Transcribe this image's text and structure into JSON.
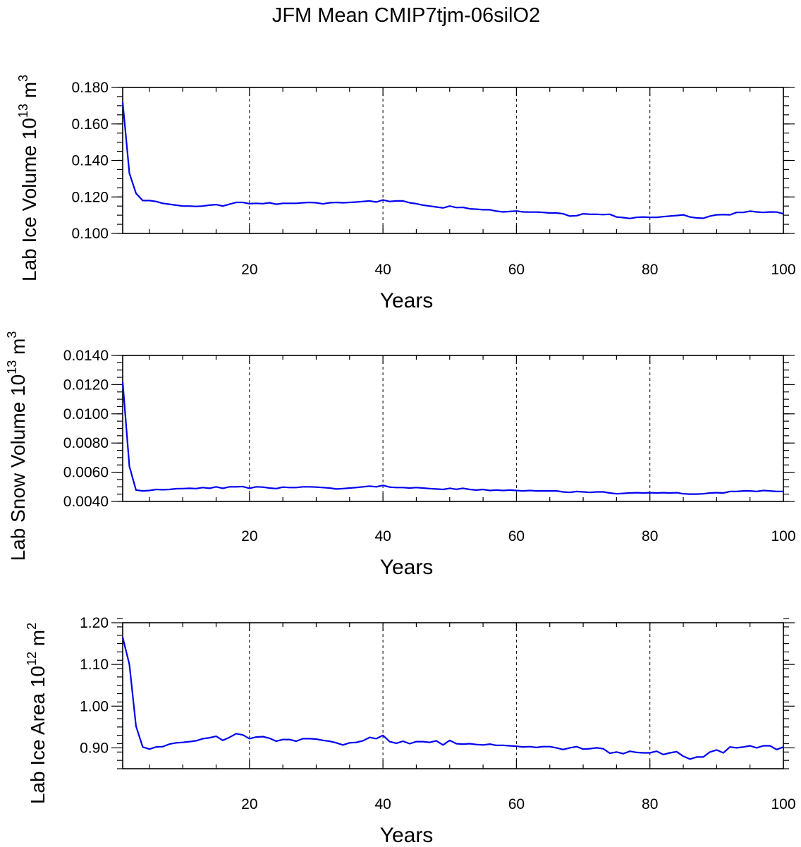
{
  "chart_data": {
    "title": "JFM Mean CMIP7tjm-06silO2",
    "type": "line",
    "line_color": "#0000ee",
    "panels": [
      {
        "type": "line",
        "ylabel": "Lab Ice Volume",
        "yunit_base": "10",
        "yunit_exp": "13",
        "yunit_var": "m",
        "yunit_pow": "3",
        "xlabel": "Years",
        "xlim": [
          1,
          100
        ],
        "ylim": [
          0.1,
          0.18
        ],
        "x_ticks": [
          "20",
          "40",
          "60",
          "80",
          "100"
        ],
        "y_ticks": [
          "0.100",
          "0.120",
          "0.140",
          "0.160",
          "0.180"
        ],
        "grid_x": [
          20,
          40,
          60,
          80
        ],
        "x": [
          1,
          2,
          3,
          4,
          5,
          6,
          7,
          8,
          9,
          10,
          11,
          12,
          13,
          14,
          15,
          16,
          17,
          18,
          19,
          20,
          21,
          22,
          23,
          24,
          25,
          26,
          27,
          28,
          29,
          30,
          31,
          32,
          33,
          34,
          35,
          36,
          37,
          38,
          39,
          40,
          41,
          42,
          43,
          44,
          45,
          46,
          47,
          48,
          49,
          50,
          51,
          52,
          53,
          54,
          55,
          56,
          57,
          58,
          59,
          60,
          61,
          62,
          63,
          64,
          65,
          66,
          67,
          68,
          69,
          70,
          71,
          72,
          73,
          74,
          75,
          76,
          77,
          78,
          79,
          80,
          81,
          82,
          83,
          84,
          85,
          86,
          87,
          88,
          89,
          90,
          91,
          92,
          93,
          94,
          95,
          96,
          97,
          98,
          99,
          100
        ],
        "values": [
          0.172,
          0.133,
          0.122,
          0.118,
          0.118,
          0.1175,
          0.1165,
          0.116,
          0.1155,
          0.115,
          0.115,
          0.1148,
          0.115,
          0.1155,
          0.1158,
          0.115,
          0.116,
          0.117,
          0.117,
          0.1163,
          0.1165,
          0.1163,
          0.1168,
          0.116,
          0.1165,
          0.1165,
          0.1165,
          0.1168,
          0.117,
          0.1168,
          0.1162,
          0.1168,
          0.117,
          0.1168,
          0.117,
          0.1172,
          0.1175,
          0.1178,
          0.1172,
          0.1183,
          0.1175,
          0.1178,
          0.1178,
          0.1168,
          0.1163,
          0.1155,
          0.115,
          0.1145,
          0.114,
          0.115,
          0.1142,
          0.1143,
          0.1135,
          0.1133,
          0.113,
          0.113,
          0.1122,
          0.1118,
          0.112,
          0.1123,
          0.1118,
          0.1117,
          0.1117,
          0.1115,
          0.1112,
          0.1112,
          0.1108,
          0.1095,
          0.1097,
          0.1108,
          0.1105,
          0.1105,
          0.1103,
          0.1105,
          0.109,
          0.1087,
          0.1082,
          0.1088,
          0.109,
          0.1088,
          0.1088,
          0.1092,
          0.1095,
          0.1098,
          0.1102,
          0.109,
          0.1085,
          0.1083,
          0.1095,
          0.1102,
          0.1103,
          0.1102,
          0.1115,
          0.1115,
          0.1122,
          0.1118,
          0.1115,
          0.1118,
          0.1117,
          0.1108
        ]
      },
      {
        "type": "line",
        "ylabel": "Lab Snow Volume",
        "yunit_base": "10",
        "yunit_exp": "13",
        "yunit_var": "m",
        "yunit_pow": "3",
        "xlabel": "Years",
        "xlim": [
          1,
          100
        ],
        "ylim": [
          0.004,
          0.014
        ],
        "x_ticks": [
          "20",
          "40",
          "60",
          "80",
          "100"
        ],
        "y_ticks": [
          "0.0040",
          "0.0060",
          "0.0080",
          "0.0100",
          "0.0120",
          "0.0140"
        ],
        "grid_x": [
          20,
          40,
          60,
          80
        ],
        "x": [
          1,
          2,
          3,
          4,
          5,
          6,
          7,
          8,
          9,
          10,
          11,
          12,
          13,
          14,
          15,
          16,
          17,
          18,
          19,
          20,
          21,
          22,
          23,
          24,
          25,
          26,
          27,
          28,
          29,
          30,
          31,
          32,
          33,
          34,
          35,
          36,
          37,
          38,
          39,
          40,
          41,
          42,
          43,
          44,
          45,
          46,
          47,
          48,
          49,
          50,
          51,
          52,
          53,
          54,
          55,
          56,
          57,
          58,
          59,
          60,
          61,
          62,
          63,
          64,
          65,
          66,
          67,
          68,
          69,
          70,
          71,
          72,
          73,
          74,
          75,
          76,
          77,
          78,
          79,
          80,
          81,
          82,
          83,
          84,
          85,
          86,
          87,
          88,
          89,
          90,
          91,
          92,
          93,
          94,
          95,
          96,
          97,
          98,
          99,
          100
        ],
        "values": [
          0.0122,
          0.0064,
          0.00478,
          0.00472,
          0.00475,
          0.00482,
          0.0048,
          0.00482,
          0.00487,
          0.00488,
          0.0049,
          0.00488,
          0.00495,
          0.0049,
          0.005,
          0.0049,
          0.005,
          0.005,
          0.00502,
          0.0049,
          0.005,
          0.00498,
          0.00492,
          0.00488,
          0.00498,
          0.00495,
          0.00495,
          0.005,
          0.005,
          0.00498,
          0.00495,
          0.00492,
          0.00485,
          0.00488,
          0.00492,
          0.00495,
          0.005,
          0.00505,
          0.005,
          0.0051,
          0.00498,
          0.00495,
          0.00495,
          0.00492,
          0.00495,
          0.00492,
          0.00488,
          0.00485,
          0.00482,
          0.0049,
          0.00483,
          0.0049,
          0.00482,
          0.00478,
          0.00482,
          0.00475,
          0.00478,
          0.00475,
          0.00478,
          0.00475,
          0.00472,
          0.00475,
          0.00472,
          0.00472,
          0.00472,
          0.00472,
          0.00465,
          0.00462,
          0.00468,
          0.00465,
          0.00462,
          0.00465,
          0.00465,
          0.00458,
          0.00452,
          0.00455,
          0.00458,
          0.0046,
          0.00458,
          0.0046,
          0.00458,
          0.0046,
          0.00458,
          0.0046,
          0.00452,
          0.0045,
          0.0045,
          0.00452,
          0.00458,
          0.0046,
          0.00458,
          0.00468,
          0.00468,
          0.00472,
          0.00472,
          0.00468,
          0.00475,
          0.00472,
          0.00468,
          0.00468
        ]
      },
      {
        "type": "line",
        "ylabel": "Lab Ice Area",
        "yunit_base": "10",
        "yunit_exp": "12",
        "yunit_var": "m",
        "yunit_pow": "2",
        "xlabel": "Years",
        "xlim": [
          1,
          100
        ],
        "ylim": [
          0.85,
          1.2
        ],
        "x_ticks": [
          "20",
          "40",
          "60",
          "80",
          "100"
        ],
        "y_ticks": [
          "0.90",
          "1.00",
          "1.10",
          "1.20"
        ],
        "grid_x": [
          20,
          40,
          60,
          80
        ],
        "x": [
          1,
          2,
          3,
          4,
          5,
          6,
          7,
          8,
          9,
          10,
          11,
          12,
          13,
          14,
          15,
          16,
          17,
          18,
          19,
          20,
          21,
          22,
          23,
          24,
          25,
          26,
          27,
          28,
          29,
          30,
          31,
          32,
          33,
          34,
          35,
          36,
          37,
          38,
          39,
          40,
          41,
          42,
          43,
          44,
          45,
          46,
          47,
          48,
          49,
          50,
          51,
          52,
          53,
          54,
          55,
          56,
          57,
          58,
          59,
          60,
          61,
          62,
          63,
          64,
          65,
          66,
          67,
          68,
          69,
          70,
          71,
          72,
          73,
          74,
          75,
          76,
          77,
          78,
          79,
          80,
          81,
          82,
          83,
          84,
          85,
          86,
          87,
          88,
          89,
          90,
          91,
          92,
          93,
          94,
          95,
          96,
          97,
          98,
          99,
          100
        ],
        "values": [
          1.165,
          1.1,
          0.952,
          0.902,
          0.897,
          0.902,
          0.903,
          0.909,
          0.912,
          0.913,
          0.915,
          0.917,
          0.922,
          0.924,
          0.928,
          0.918,
          0.925,
          0.934,
          0.931,
          0.922,
          0.926,
          0.927,
          0.923,
          0.916,
          0.92,
          0.92,
          0.916,
          0.922,
          0.922,
          0.921,
          0.918,
          0.916,
          0.912,
          0.907,
          0.912,
          0.913,
          0.917,
          0.925,
          0.922,
          0.93,
          0.915,
          0.911,
          0.916,
          0.91,
          0.915,
          0.915,
          0.913,
          0.917,
          0.907,
          0.918,
          0.91,
          0.909,
          0.91,
          0.908,
          0.907,
          0.909,
          0.906,
          0.906,
          0.905,
          0.904,
          0.902,
          0.903,
          0.901,
          0.903,
          0.903,
          0.9,
          0.896,
          0.9,
          0.903,
          0.897,
          0.898,
          0.9,
          0.898,
          0.887,
          0.89,
          0.886,
          0.892,
          0.889,
          0.888,
          0.888,
          0.892,
          0.884,
          0.888,
          0.891,
          0.88,
          0.873,
          0.878,
          0.878,
          0.89,
          0.895,
          0.888,
          0.902,
          0.9,
          0.902,
          0.905,
          0.9,
          0.905,
          0.905,
          0.896,
          0.902
        ]
      }
    ]
  }
}
